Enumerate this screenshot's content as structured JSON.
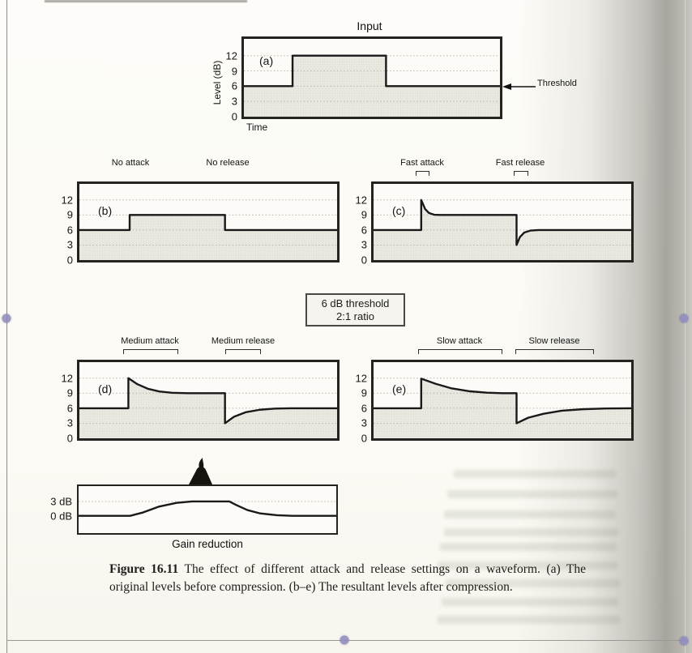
{
  "page": {
    "threshold_label": "Threshold",
    "settings_box": {
      "line1": "6 dB threshold",
      "line2": "2:1 ratio"
    },
    "figure_caption": {
      "label": "Figure 16.11",
      "text": " The effect of different attack and release settings on a waveform. (a) The original levels before compression. (b–e) The resultant levels after compression."
    }
  },
  "chart_data": [
    {
      "id": "input",
      "type": "line",
      "panel_label": "(a)",
      "title": "Input",
      "xlabel": "Time",
      "ylabel": "Level (dB)",
      "ylim": [
        0,
        15.3
      ],
      "grid": [
        3,
        6,
        9,
        12
      ],
      "fill": true,
      "yticks": [
        {
          "v": 12,
          "label": "12"
        },
        {
          "v": 9,
          "label": "9"
        },
        {
          "v": 6,
          "label": "6"
        },
        {
          "v": 3,
          "label": "3"
        },
        {
          "v": 0,
          "label": "0"
        }
      ],
      "annotation": "Threshold arrow at 6 dB level",
      "points": [
        [
          0,
          6
        ],
        [
          0.19,
          6
        ],
        [
          0.19,
          12
        ],
        [
          0.555,
          12
        ],
        [
          0.555,
          6
        ],
        [
          1,
          6
        ]
      ]
    },
    {
      "id": "b",
      "type": "line",
      "panel_label": "(b)",
      "attack_label": "No attack",
      "release_label": "No release",
      "ylim": [
        0,
        15.2
      ],
      "grid": [
        3,
        6,
        9,
        12
      ],
      "fill": true,
      "yticks": [
        {
          "v": 12,
          "label": "12"
        },
        {
          "v": 9,
          "label": "9"
        },
        {
          "v": 6,
          "label": "6"
        },
        {
          "v": 3,
          "label": "3"
        },
        {
          "v": 0,
          "label": "0"
        }
      ],
      "points": [
        [
          0,
          6
        ],
        [
          0.195,
          6
        ],
        [
          0.195,
          9
        ],
        [
          0.565,
          9
        ],
        [
          0.565,
          6
        ],
        [
          1,
          6
        ]
      ]
    },
    {
      "id": "c",
      "type": "line",
      "panel_label": "(c)",
      "attack_label": "Fast attack",
      "release_label": "Fast release",
      "ylim": [
        0,
        15.2
      ],
      "grid": [
        3,
        6,
        9,
        12
      ],
      "fill": true,
      "yticks": [
        {
          "v": 12,
          "label": "12"
        },
        {
          "v": 9,
          "label": "9"
        },
        {
          "v": 6,
          "label": "6"
        },
        {
          "v": 3,
          "label": "3"
        },
        {
          "v": 0,
          "label": "0"
        }
      ],
      "points": [
        [
          0,
          6
        ],
        [
          0.185,
          6
        ],
        [
          0.185,
          12
        ],
        [
          0.2,
          10.2
        ],
        [
          0.215,
          9.4
        ],
        [
          0.235,
          9.05
        ],
        [
          0.26,
          9
        ],
        [
          0.555,
          9
        ],
        [
          0.555,
          3
        ],
        [
          0.568,
          4.6
        ],
        [
          0.585,
          5.5
        ],
        [
          0.61,
          5.9
        ],
        [
          0.64,
          6
        ],
        [
          1,
          6
        ]
      ]
    },
    {
      "id": "d",
      "type": "line",
      "panel_label": "(d)",
      "attack_label": "Medium attack",
      "release_label": "Medium release",
      "ylim": [
        0,
        15.2
      ],
      "grid": [
        3,
        6,
        9,
        12
      ],
      "fill": true,
      "yticks": [
        {
          "v": 12,
          "label": "12"
        },
        {
          "v": 9,
          "label": "9"
        },
        {
          "v": 6,
          "label": "6"
        },
        {
          "v": 3,
          "label": "3"
        },
        {
          "v": 0,
          "label": "0"
        }
      ],
      "points": [
        [
          0,
          6
        ],
        [
          0.19,
          6
        ],
        [
          0.19,
          12
        ],
        [
          0.225,
          10.8
        ],
        [
          0.265,
          9.9
        ],
        [
          0.31,
          9.35
        ],
        [
          0.36,
          9.08
        ],
        [
          0.42,
          9
        ],
        [
          0.565,
          9
        ],
        [
          0.565,
          3
        ],
        [
          0.6,
          4.3
        ],
        [
          0.645,
          5.2
        ],
        [
          0.7,
          5.7
        ],
        [
          0.76,
          5.93
        ],
        [
          0.82,
          6
        ],
        [
          1,
          6
        ]
      ]
    },
    {
      "id": "e",
      "type": "line",
      "panel_label": "(e)",
      "attack_label": "Slow attack",
      "release_label": "Slow release",
      "ylim": [
        0,
        15.2
      ],
      "grid": [
        3,
        6,
        9,
        12
      ],
      "fill": true,
      "yticks": [
        {
          "v": 12,
          "label": "12"
        },
        {
          "v": 9,
          "label": "9"
        },
        {
          "v": 6,
          "label": "6"
        },
        {
          "v": 3,
          "label": "3"
        },
        {
          "v": 0,
          "label": "0"
        }
      ],
      "points": [
        [
          0,
          6
        ],
        [
          0.185,
          6
        ],
        [
          0.185,
          11.9
        ],
        [
          0.24,
          10.9
        ],
        [
          0.3,
          10
        ],
        [
          0.37,
          9.4
        ],
        [
          0.44,
          9.1
        ],
        [
          0.5,
          9
        ],
        [
          0.555,
          9
        ],
        [
          0.555,
          3
        ],
        [
          0.6,
          4.1
        ],
        [
          0.66,
          4.9
        ],
        [
          0.73,
          5.5
        ],
        [
          0.81,
          5.8
        ],
        [
          0.9,
          5.95
        ],
        [
          1,
          6
        ]
      ]
    },
    {
      "id": "gain",
      "type": "line",
      "title": "Gain reduction",
      "ylim": [
        -3.6,
        6.2
      ],
      "grid": [
        3
      ],
      "fill": false,
      "yticks": [
        {
          "v": 3,
          "label": "3 dB"
        },
        {
          "v": 0,
          "label": "0 dB"
        }
      ],
      "points": [
        [
          0,
          0
        ],
        [
          0.2,
          0
        ],
        [
          0.25,
          0.7
        ],
        [
          0.31,
          1.9
        ],
        [
          0.38,
          2.7
        ],
        [
          0.44,
          3
        ],
        [
          0.585,
          3
        ],
        [
          0.61,
          2.3
        ],
        [
          0.655,
          1.2
        ],
        [
          0.705,
          0.5
        ],
        [
          0.77,
          0.12
        ],
        [
          0.83,
          0
        ],
        [
          1,
          0
        ]
      ]
    }
  ]
}
